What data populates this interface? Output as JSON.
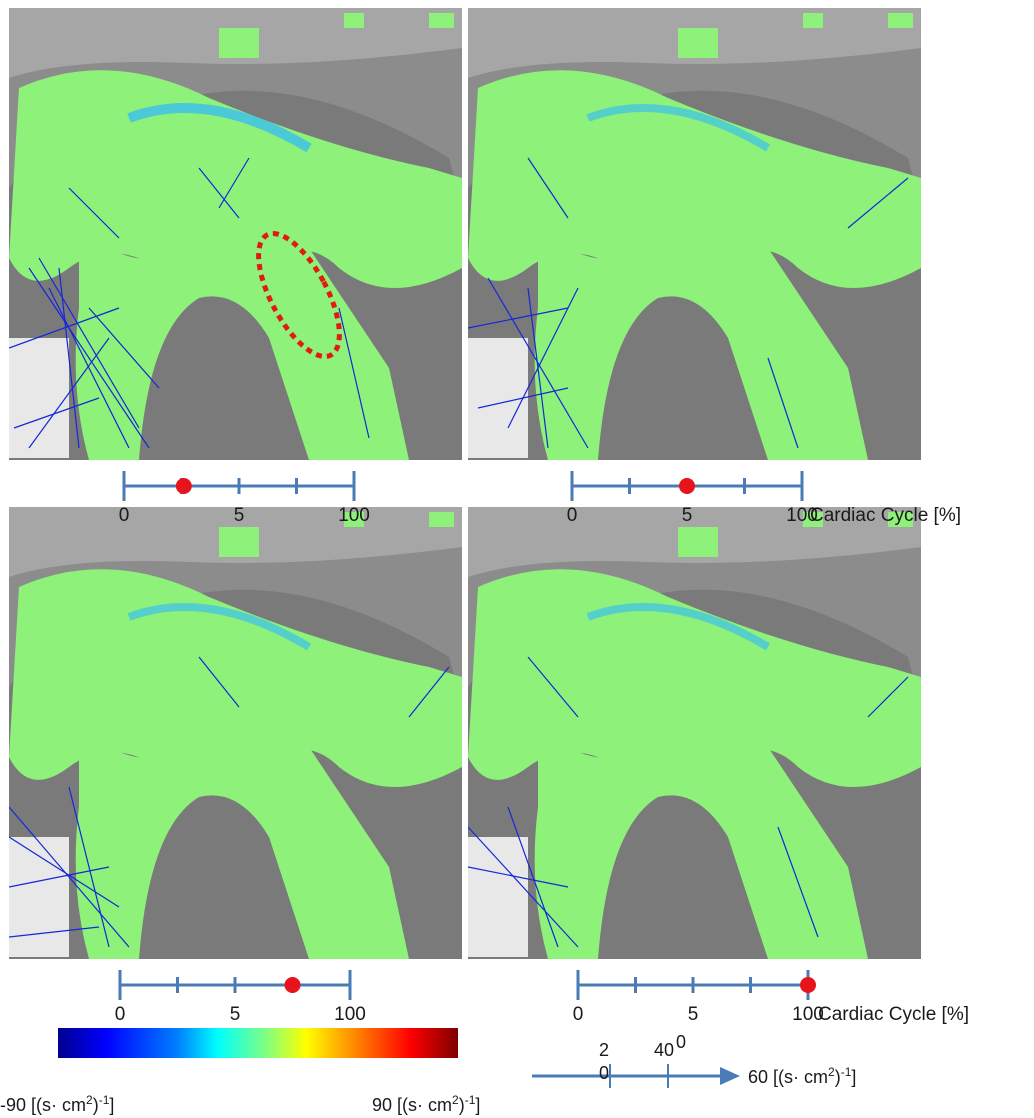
{
  "panels": [
    {
      "id": "top-left",
      "phase_pct": 0.25,
      "highlight_region": true
    },
    {
      "id": "top-right",
      "phase_pct": 0.5,
      "highlight_region": false
    },
    {
      "id": "bottom-left",
      "phase_pct": 0.75,
      "highlight_region": false
    },
    {
      "id": "bottom-right",
      "phase_pct": 1.0,
      "highlight_region": false
    }
  ],
  "timeline": {
    "ticks": [
      "0",
      "5",
      "100"
    ],
    "axis_title": "Cardiac Cycle [%]",
    "line_color": "#4a7bb7",
    "marker_color": "#e8141b"
  },
  "colorbar": {
    "min_label": "-90 [(s· cm",
    "max_label": "90 [(s· cm",
    "unit_tail": ")",
    "sup2": "2",
    "supneg": "-1"
  },
  "vector_scale": {
    "labels": [
      "2",
      "40",
      "0",
      "0"
    ],
    "value_label": "60 [(s· cm",
    "arrow_color": "#4a7bb7"
  },
  "colors": {
    "tissue_green": "#8ef27a",
    "vector_blue": "#1428d8",
    "background_gray": "#8a8a8a",
    "highlight_red": "#e11b14"
  }
}
